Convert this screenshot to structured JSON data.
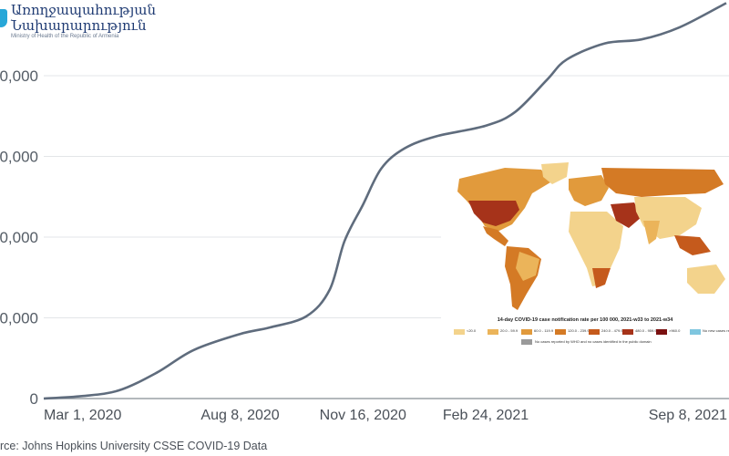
{
  "logo": {
    "line1": "Առողջապահության",
    "line2": "Նախարարություն",
    "subtitle": "Ministry of Health of the Republic of Armenia"
  },
  "chart_data": {
    "type": "line",
    "title": "",
    "xlabel": "",
    "ylabel": "",
    "x_tick_labels": [
      "Mar 1, 2020",
      "Aug 8, 2020",
      "Nov 16, 2020",
      "Feb 24, 2021",
      "Sep 8, 2021"
    ],
    "y_tick_labels": [
      "0",
      "0,000",
      "0,000",
      "0,000",
      "0,000"
    ],
    "y_tick_values": [
      0,
      1,
      2,
      3,
      4
    ],
    "grid": true,
    "series": [
      {
        "color": "#5f6c7d",
        "points": [
          [
            "2020-03-01",
            0.0
          ],
          [
            "2020-04-01",
            0.03
          ],
          [
            "2020-05-01",
            0.1
          ],
          [
            "2020-06-01",
            0.32
          ],
          [
            "2020-07-01",
            0.6
          ],
          [
            "2020-08-08",
            0.8
          ],
          [
            "2020-09-01",
            0.88
          ],
          [
            "2020-10-01",
            1.02
          ],
          [
            "2020-10-20",
            1.35
          ],
          [
            "2020-11-01",
            1.95
          ],
          [
            "2020-11-16",
            2.4
          ],
          [
            "2020-12-01",
            2.85
          ],
          [
            "2020-12-20",
            3.1
          ],
          [
            "2021-01-15",
            3.25
          ],
          [
            "2021-02-24",
            3.38
          ],
          [
            "2021-03-20",
            3.55
          ],
          [
            "2021-04-15",
            3.95
          ],
          [
            "2021-05-01",
            4.2
          ],
          [
            "2021-06-01",
            4.4
          ],
          [
            "2021-07-01",
            4.45
          ],
          [
            "2021-08-01",
            4.6
          ],
          [
            "2021-09-08",
            4.9
          ]
        ]
      }
    ]
  },
  "source": "rce: Johns Hopkins University CSSE COVID-19 Data",
  "inset_map": {
    "title": "14-day COVID-19 case notification rate per 100 000, 2021-w33 to 2021-w34",
    "legend": [
      {
        "label": "<20.0",
        "color": "#f3d38c"
      },
      {
        "label": "20.0 - 59.9",
        "color": "#ebb45a"
      },
      {
        "label": "60.0 - 119.9",
        "color": "#e19a3c"
      },
      {
        "label": "120.0 - 239.9",
        "color": "#d47a25"
      },
      {
        "label": "240.0 - 479.9",
        "color": "#c55a1c"
      },
      {
        "label": "480.0 - 959.9",
        "color": "#a6331a"
      },
      {
        "label": ">960.0",
        "color": "#7a1010"
      },
      {
        "label": "No new cases reported",
        "color": "#7fc6df"
      }
    ],
    "no_data_label": "No cases reported by WHO and no cases identified in the public domain"
  }
}
